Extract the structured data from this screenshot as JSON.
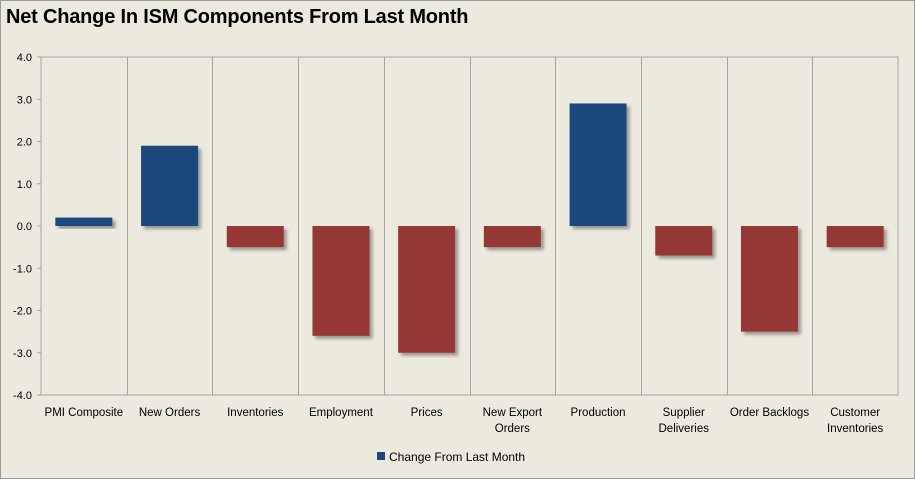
{
  "chart_data": {
    "type": "bar",
    "title": "Net Change In ISM Components From Last Month",
    "categories": [
      "PMI Composite",
      "New Orders",
      "Inventories",
      "Employment",
      "Prices",
      "New Export Orders",
      "Production",
      "Supplier Deliveries",
      "Order Backlogs",
      "Customer Inventories"
    ],
    "category_lines": [
      [
        "PMI Composite"
      ],
      [
        "New Orders"
      ],
      [
        "Inventories"
      ],
      [
        "Employment"
      ],
      [
        "Prices"
      ],
      [
        "New Export",
        "Orders"
      ],
      [
        "Production"
      ],
      [
        "Supplier",
        "Deliveries"
      ],
      [
        "Order Backlogs"
      ],
      [
        "Customer",
        "Inventories"
      ]
    ],
    "series": [
      {
        "name": "Change From Last Month",
        "values": [
          0.2,
          1.9,
          -0.5,
          -2.6,
          -3.0,
          -0.5,
          2.9,
          -0.7,
          -2.5,
          -0.5
        ]
      }
    ],
    "ylim": [
      -4.0,
      4.0
    ],
    "yticks": [
      "4.0",
      "3.0",
      "2.0",
      "1.0",
      "0.0",
      "-1.0",
      "-2.0",
      "-3.0",
      "-4.0"
    ],
    "ytick_values": [
      4,
      3,
      2,
      1,
      0,
      -1,
      -2,
      -3,
      -4
    ],
    "xlabel": "",
    "ylabel": "",
    "legend_position": "bottom-center",
    "colors": {
      "positive": "#1f497d",
      "negative": "#953735",
      "grid": "#a6a6a6"
    }
  }
}
